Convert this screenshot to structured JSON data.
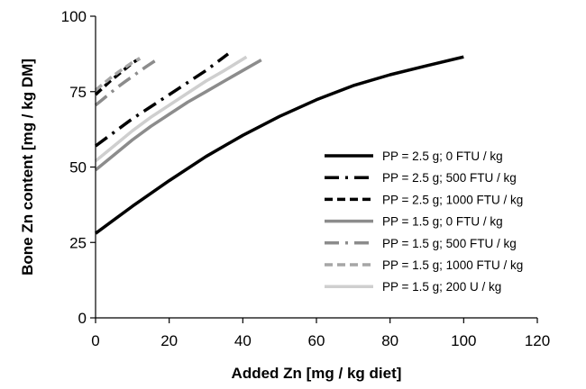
{
  "chart_data": {
    "type": "line",
    "title": "",
    "xlabel": "Added Zn [mg / kg diet]",
    "ylabel": "Bone Zn content [mg / kg DM]",
    "xlim": [
      0,
      120
    ],
    "ylim": [
      0,
      100
    ],
    "xticks": [
      0,
      20,
      40,
      60,
      80,
      100,
      120
    ],
    "yticks": [
      0,
      25,
      50,
      75,
      100
    ],
    "grid": false,
    "legend_position": "right",
    "series": [
      {
        "name": "PP = 2.5 g; 0 FTU / kg",
        "color": "#000000",
        "dash": "solid",
        "x": [
          0,
          10,
          20,
          30,
          40,
          50,
          60,
          70,
          80,
          90,
          100
        ],
        "y": [
          28,
          37,
          45.5,
          53.5,
          60.5,
          66.8,
          72.3,
          77,
          80.6,
          83.6,
          86.5
        ]
      },
      {
        "name": "PP = 2.5 g; 500 FTU / kg",
        "color": "#000000",
        "dash": "dashdot",
        "x": [
          0,
          5,
          10,
          15,
          20,
          25,
          30,
          36
        ],
        "y": [
          57,
          61.5,
          66,
          70,
          74,
          78,
          82,
          87.5
        ]
      },
      {
        "name": "PP = 2.5 g; 1000 FTU / kg",
        "color": "#000000",
        "dash": "dash",
        "x": [
          0,
          2,
          4,
          6,
          8,
          10,
          12
        ],
        "y": [
          74,
          76.3,
          78.5,
          80.5,
          82.5,
          84.5,
          86
        ]
      },
      {
        "name": "PP = 1.5 g; 0 FTU / kg",
        "color": "#8c8c8c",
        "dash": "solid",
        "x": [
          0,
          5,
          10,
          15,
          20,
          25,
          30,
          35,
          40,
          45
        ],
        "y": [
          49,
          54,
          59,
          63.5,
          67.5,
          71.5,
          75,
          78.5,
          82,
          85.5
        ]
      },
      {
        "name": "PP = 1.5 g; 500 FTU / kg",
        "color": "#8c8c8c",
        "dash": "dashdot",
        "x": [
          0,
          2,
          4,
          6,
          8,
          10,
          12,
          14,
          16.5
        ],
        "y": [
          70.5,
          72.5,
          74.5,
          76.5,
          78.3,
          80,
          81.8,
          83.5,
          85.5
        ]
      },
      {
        "name": "PP = 1.5 g; 1000 FTU / kg",
        "color": "#a6a6a6",
        "dash": "dash",
        "x": [
          0,
          2,
          4,
          6,
          8,
          10,
          12
        ],
        "y": [
          75.5,
          77.5,
          79.5,
          81.3,
          83,
          84.7,
          86
        ]
      },
      {
        "name": "PP = 1.5 g; 200 U / kg",
        "color": "#cfcfcf",
        "dash": "solid",
        "x": [
          0,
          5,
          10,
          15,
          20,
          25,
          30,
          35,
          41
        ],
        "y": [
          52,
          57,
          62,
          66.5,
          70.5,
          74.5,
          78.5,
          82,
          86.5
        ]
      }
    ]
  }
}
